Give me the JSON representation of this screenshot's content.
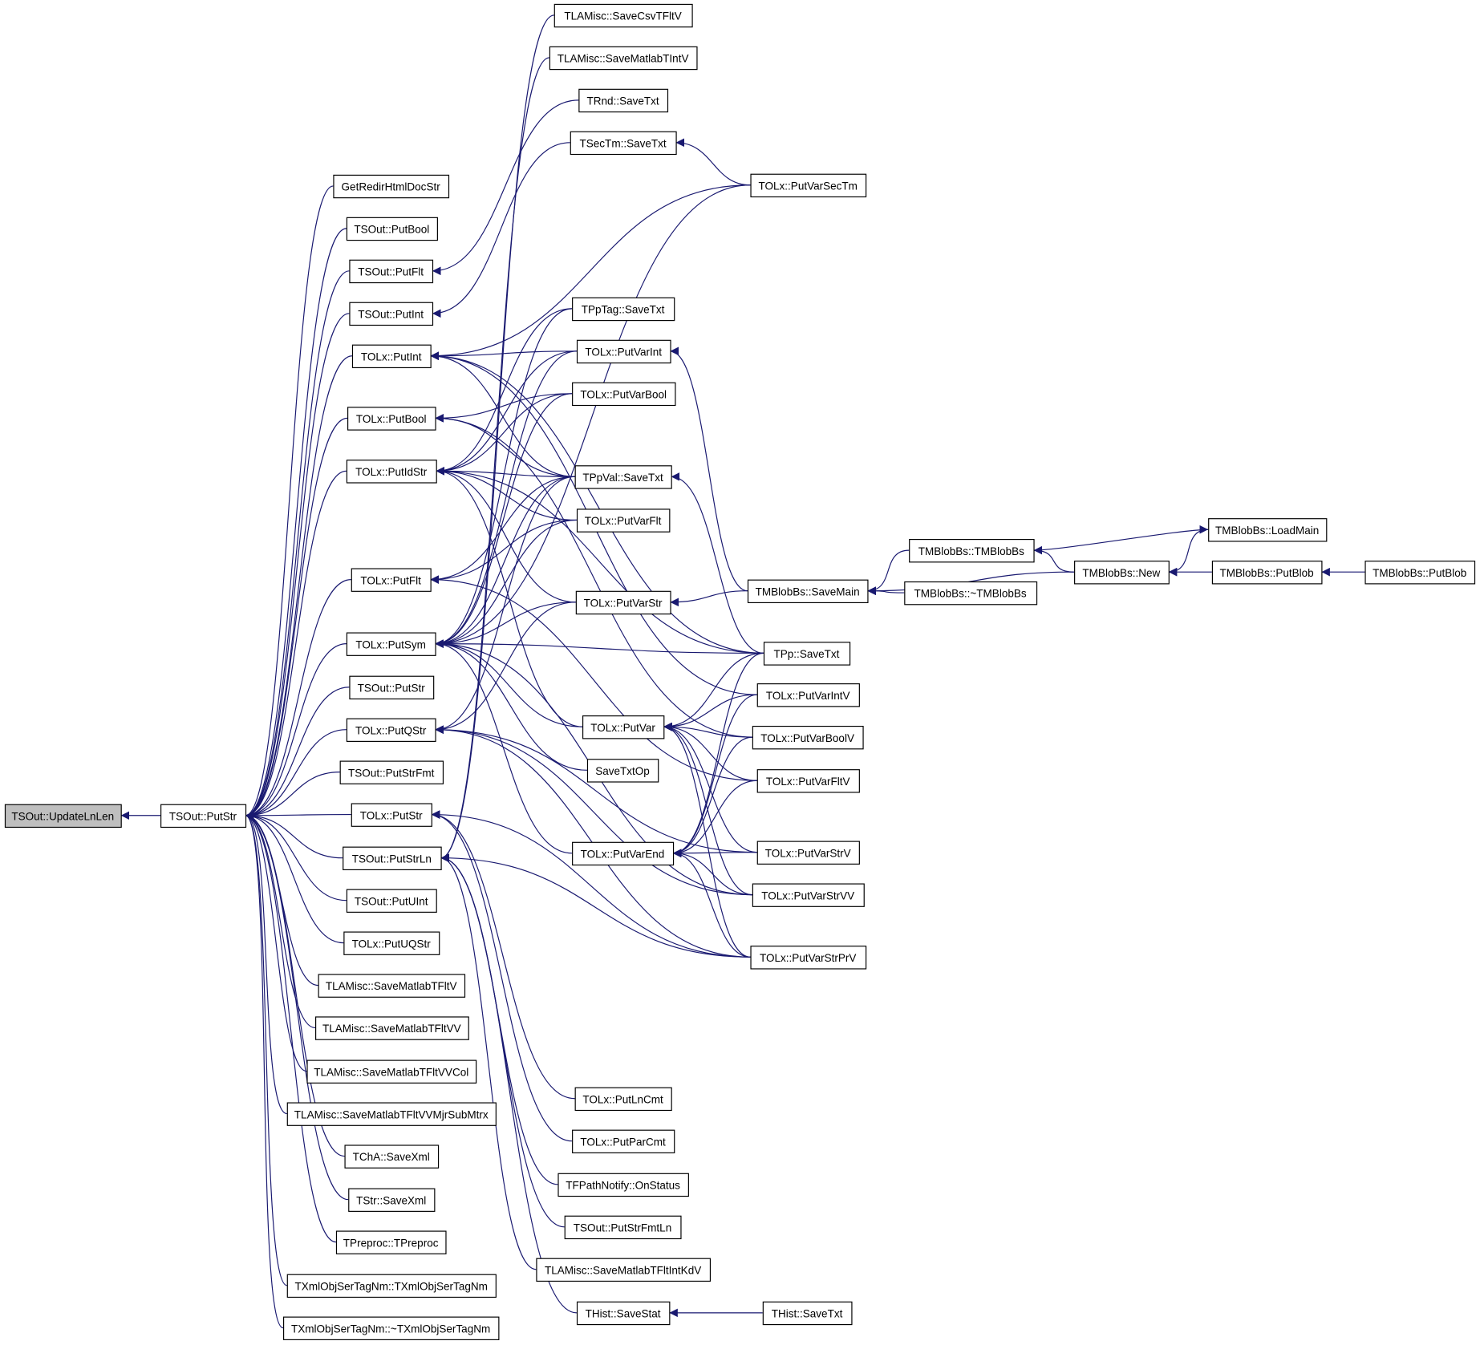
{
  "colors": {
    "edge": "#191970",
    "root_fill": "#bfbfbf",
    "node_fill": "#ffffff"
  },
  "root": "updlnlen",
  "nodes": [
    {
      "id": "updlnlen",
      "label": "TSOut::UpdateLnLen"
    },
    {
      "id": "sout_putstr",
      "label": "TSOut::PutStr"
    },
    {
      "id": "getredir",
      "label": "GetRedirHtmlDocStr"
    },
    {
      "id": "sout_putbool",
      "label": "TSOut::PutBool"
    },
    {
      "id": "sout_putflt",
      "label": "TSOut::PutFlt"
    },
    {
      "id": "sout_putint",
      "label": "TSOut::PutInt"
    },
    {
      "id": "olx_putint",
      "label": "TOLx::PutInt"
    },
    {
      "id": "olx_putbool",
      "label": "TOLx::PutBool"
    },
    {
      "id": "olx_putidstr",
      "label": "TOLx::PutIdStr"
    },
    {
      "id": "olx_putflt",
      "label": "TOLx::PutFlt"
    },
    {
      "id": "olx_putsym",
      "label": "TOLx::PutSym"
    },
    {
      "id": "sout_putstr2",
      "label": "TSOut::PutStr"
    },
    {
      "id": "olx_putqstr",
      "label": "TOLx::PutQStr"
    },
    {
      "id": "sout_putstrfmt",
      "label": "TSOut::PutStrFmt"
    },
    {
      "id": "olx_putstr",
      "label": "TOLx::PutStr"
    },
    {
      "id": "sout_putstrln",
      "label": "TSOut::PutStrLn"
    },
    {
      "id": "sout_putuint",
      "label": "TSOut::PutUInt"
    },
    {
      "id": "olx_putuqstr",
      "label": "TOLx::PutUQStr"
    },
    {
      "id": "la_smtfltv",
      "label": "TLAMisc::SaveMatlabTFltV"
    },
    {
      "id": "la_smtfltvv",
      "label": "TLAMisc::SaveMatlabTFltVV"
    },
    {
      "id": "la_smtfltvvcol",
      "label": "TLAMisc::SaveMatlabTFltVVCol"
    },
    {
      "id": "la_smtfltvvmjr",
      "label": "TLAMisc::SaveMatlabTFltVVMjrSubMtrx"
    },
    {
      "id": "cha_savexml",
      "label": "TChA::SaveXml"
    },
    {
      "id": "str_savexml",
      "label": "TStr::SaveXml"
    },
    {
      "id": "preproc",
      "label": "TPreproc::TPreproc"
    },
    {
      "id": "xmlser",
      "label": "TXmlObjSerTagNm::TXmlObjSerTagNm"
    },
    {
      "id": "xmlser_d",
      "label": "TXmlObjSerTagNm::~TXmlObjSerTagNm"
    },
    {
      "id": "la_savecsv",
      "label": "TLAMisc::SaveCsvTFltV"
    },
    {
      "id": "la_smtintv",
      "label": "TLAMisc::SaveMatlabTIntV"
    },
    {
      "id": "rnd_savetxt",
      "label": "TRnd::SaveTxt"
    },
    {
      "id": "sectm_savetxt",
      "label": "TSecTm::SaveTxt"
    },
    {
      "id": "pptag_savetxt",
      "label": "TPpTag::SaveTxt"
    },
    {
      "id": "olx_putvarint",
      "label": "TOLx::PutVarInt"
    },
    {
      "id": "olx_putvarbool",
      "label": "TOLx::PutVarBool"
    },
    {
      "id": "ppval_savetxt",
      "label": "TPpVal::SaveTxt"
    },
    {
      "id": "olx_putvarflt",
      "label": "TOLx::PutVarFlt"
    },
    {
      "id": "olx_putvarstr",
      "label": "TOLx::PutVarStr"
    },
    {
      "id": "olx_putvar",
      "label": "TOLx::PutVar"
    },
    {
      "id": "savetxtop",
      "label": "SaveTxtOp"
    },
    {
      "id": "olx_putvarend",
      "label": "TOLx::PutVarEnd"
    },
    {
      "id": "olx_putlncmt",
      "label": "TOLx::PutLnCmt"
    },
    {
      "id": "olx_putparcmt",
      "label": "TOLx::PutParCmt"
    },
    {
      "id": "fpath_onstatus",
      "label": "TFPathNotify::OnStatus"
    },
    {
      "id": "sout_putstrfmtln",
      "label": "TSOut::PutStrFmtLn"
    },
    {
      "id": "la_smtfltintkdv",
      "label": "TLAMisc::SaveMatlabTFltIntKdV"
    },
    {
      "id": "hist_savestat",
      "label": "THist::SaveStat"
    },
    {
      "id": "olx_putvarsectm",
      "label": "TOLx::PutVarSecTm"
    },
    {
      "id": "mb_savemain",
      "label": "TMBlobBs::SaveMain"
    },
    {
      "id": "pp_savetxt",
      "label": "TPp::SaveTxt"
    },
    {
      "id": "olx_putvarintv",
      "label": "TOLx::PutVarIntV"
    },
    {
      "id": "olx_putvarboolv",
      "label": "TOLx::PutVarBoolV"
    },
    {
      "id": "olx_putvarfltv",
      "label": "TOLx::PutVarFltV"
    },
    {
      "id": "olx_putvarstrv",
      "label": "TOLx::PutVarStrV"
    },
    {
      "id": "olx_putvarstrvv",
      "label": "TOLx::PutVarStrVV"
    },
    {
      "id": "olx_putvarstrprv",
      "label": "TOLx::PutVarStrPrV"
    },
    {
      "id": "hist_savetxt",
      "label": "THist::SaveTxt"
    },
    {
      "id": "mb_ctor",
      "label": "TMBlobBs::TMBlobBs"
    },
    {
      "id": "mb_dtor",
      "label": "TMBlobBs::~TMBlobBs"
    },
    {
      "id": "mb_new",
      "label": "TMBlobBs::New"
    },
    {
      "id": "mb_loadmain",
      "label": "TMBlobBs::LoadMain"
    },
    {
      "id": "mb_putblob",
      "label": "TMBlobBs::PutBlob"
    },
    {
      "id": "mb_putblob2",
      "label": "TMBlobBs::PutBlob"
    }
  ],
  "edges": [
    [
      "sout_putstr",
      "updlnlen"
    ],
    [
      "getredir",
      "sout_putstr"
    ],
    [
      "sout_putbool",
      "sout_putstr"
    ],
    [
      "sout_putflt",
      "sout_putstr"
    ],
    [
      "sout_putint",
      "sout_putstr"
    ],
    [
      "olx_putint",
      "sout_putstr"
    ],
    [
      "olx_putbool",
      "sout_putstr"
    ],
    [
      "olx_putidstr",
      "sout_putstr"
    ],
    [
      "olx_putflt",
      "sout_putstr"
    ],
    [
      "olx_putsym",
      "sout_putstr"
    ],
    [
      "sout_putstr2",
      "sout_putstr"
    ],
    [
      "olx_putqstr",
      "sout_putstr"
    ],
    [
      "sout_putstrfmt",
      "sout_putstr"
    ],
    [
      "olx_putstr",
      "sout_putstr"
    ],
    [
      "sout_putstrln",
      "sout_putstr"
    ],
    [
      "sout_putuint",
      "sout_putstr"
    ],
    [
      "olx_putuqstr",
      "sout_putstr"
    ],
    [
      "la_smtfltv",
      "sout_putstr"
    ],
    [
      "la_smtfltvv",
      "sout_putstr"
    ],
    [
      "la_smtfltvvcol",
      "sout_putstr"
    ],
    [
      "la_smtfltvvmjr",
      "sout_putstr"
    ],
    [
      "cha_savexml",
      "sout_putstr"
    ],
    [
      "str_savexml",
      "sout_putstr"
    ],
    [
      "preproc",
      "sout_putstr"
    ],
    [
      "xmlser",
      "sout_putstr"
    ],
    [
      "xmlser_d",
      "sout_putstr"
    ],
    [
      "rnd_savetxt",
      "sout_putflt"
    ],
    [
      "sectm_savetxt",
      "sout_putint"
    ],
    [
      "la_savecsv",
      "sout_putstrln"
    ],
    [
      "la_smtintv",
      "sout_putstrln"
    ],
    [
      "olx_putvarsectm",
      "olx_putint"
    ],
    [
      "pp_savetxt",
      "olx_putint"
    ],
    [
      "olx_putvarint",
      "olx_putint"
    ],
    [
      "ppval_savetxt",
      "olx_putint"
    ],
    [
      "olx_putvarintv",
      "olx_putint"
    ],
    [
      "olx_putvarbool",
      "olx_putbool"
    ],
    [
      "ppval_savetxt",
      "olx_putbool"
    ],
    [
      "olx_putvarboolv",
      "olx_putbool"
    ],
    [
      "pptag_savetxt",
      "olx_putidstr"
    ],
    [
      "olx_putvarint",
      "olx_putidstr"
    ],
    [
      "olx_putvarbool",
      "olx_putidstr"
    ],
    [
      "ppval_savetxt",
      "olx_putidstr"
    ],
    [
      "olx_putvarflt",
      "olx_putidstr"
    ],
    [
      "olx_putvarstr",
      "olx_putidstr"
    ],
    [
      "olx_putvar",
      "olx_putidstr"
    ],
    [
      "pp_savetxt",
      "olx_putidstr"
    ],
    [
      "ppval_savetxt",
      "olx_putflt"
    ],
    [
      "olx_putvarflt",
      "olx_putflt"
    ],
    [
      "olx_putvarfltv",
      "olx_putflt"
    ],
    [
      "pptag_savetxt",
      "olx_putsym"
    ],
    [
      "olx_putvarint",
      "olx_putsym"
    ],
    [
      "olx_putvarbool",
      "olx_putsym"
    ],
    [
      "ppval_savetxt",
      "olx_putsym"
    ],
    [
      "olx_putvarflt",
      "olx_putsym"
    ],
    [
      "olx_putvarstr",
      "olx_putsym"
    ],
    [
      "pp_savetxt",
      "olx_putsym"
    ],
    [
      "olx_putvar",
      "olx_putsym"
    ],
    [
      "savetxtop",
      "olx_putsym"
    ],
    [
      "olx_putvarend",
      "olx_putsym"
    ],
    [
      "olx_putvarsectm",
      "olx_putsym"
    ],
    [
      "olx_putvarstrvv",
      "olx_putsym"
    ],
    [
      "olx_putvarstr",
      "olx_putqstr"
    ],
    [
      "ppval_savetxt",
      "olx_putqstr"
    ],
    [
      "olx_putvarstrv",
      "olx_putqstr"
    ],
    [
      "olx_putvarstrvv",
      "olx_putqstr"
    ],
    [
      "olx_putvarstrprv",
      "olx_putqstr"
    ],
    [
      "olx_putlncmt",
      "olx_putstr"
    ],
    [
      "olx_putparcmt",
      "olx_putstr"
    ],
    [
      "olx_putvarstrprv",
      "olx_putstr"
    ],
    [
      "fpath_onstatus",
      "sout_putstrln"
    ],
    [
      "sout_putstrfmtln",
      "sout_putstrln"
    ],
    [
      "la_smtfltintkdv",
      "sout_putstrln"
    ],
    [
      "hist_savestat",
      "sout_putstrln"
    ],
    [
      "olx_putvarstrprv",
      "sout_putstrln"
    ],
    [
      "olx_putvarsectm",
      "sectm_savetxt"
    ],
    [
      "mb_savemain",
      "olx_putvarint"
    ],
    [
      "mb_savemain",
      "olx_putvarstr"
    ],
    [
      "pp_savetxt",
      "ppval_savetxt"
    ],
    [
      "pp_savetxt",
      "olx_putvar"
    ],
    [
      "olx_putvarintv",
      "olx_putvar"
    ],
    [
      "olx_putvarboolv",
      "olx_putvar"
    ],
    [
      "olx_putvarfltv",
      "olx_putvar"
    ],
    [
      "olx_putvarstrv",
      "olx_putvar"
    ],
    [
      "olx_putvarstrvv",
      "olx_putvar"
    ],
    [
      "olx_putvarstrprv",
      "olx_putvar"
    ],
    [
      "pp_savetxt",
      "olx_putvarend"
    ],
    [
      "olx_putvarintv",
      "olx_putvarend"
    ],
    [
      "olx_putvarboolv",
      "olx_putvarend"
    ],
    [
      "olx_putvarfltv",
      "olx_putvarend"
    ],
    [
      "olx_putvarstrv",
      "olx_putvarend"
    ],
    [
      "olx_putvarstrvv",
      "olx_putvarend"
    ],
    [
      "olx_putvarstrprv",
      "olx_putvarend"
    ],
    [
      "mb_ctor",
      "mb_savemain"
    ],
    [
      "mb_dtor",
      "mb_savemain"
    ],
    [
      "mb_new",
      "mb_savemain"
    ],
    [
      "mb_new",
      "mb_ctor"
    ],
    [
      "mb_ctor",
      "mb_loadmain"
    ],
    [
      "mb_loadmain",
      "mb_new"
    ],
    [
      "mb_putblob",
      "mb_new"
    ],
    [
      "mb_putblob2",
      "mb_putblob"
    ],
    [
      "hist_savetxt",
      "hist_savestat"
    ]
  ]
}
